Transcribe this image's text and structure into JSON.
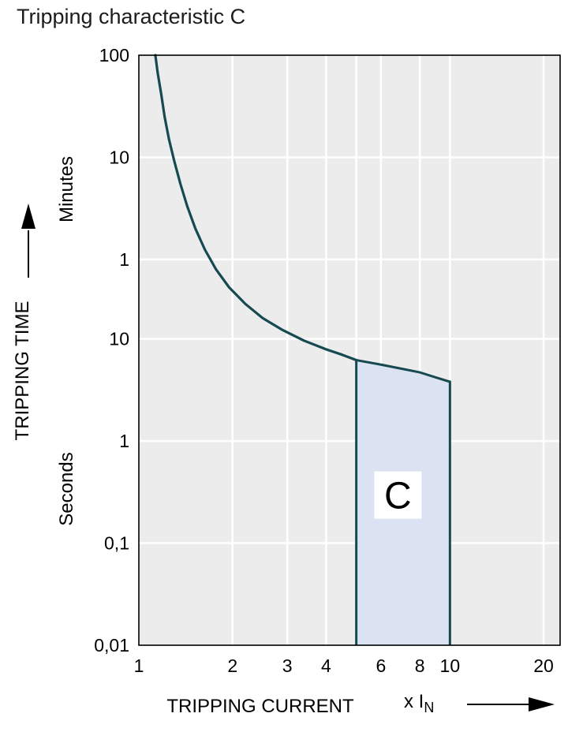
{
  "chart_data": {
    "type": "line",
    "title": "Tripping characteristic C",
    "x_axis": {
      "label": "TRIPPING CURRENT",
      "unit_label": "x I",
      "unit_sub": "N",
      "scale": "log",
      "min": 1,
      "max": 22.6,
      "ticks": [
        1,
        2,
        3,
        4,
        6,
        8,
        10,
        20
      ],
      "tick_labels": [
        "1",
        "2",
        "3",
        "4",
        "6",
        "8",
        "10",
        "20"
      ],
      "gridlines": [
        2,
        3,
        4,
        5,
        6,
        8,
        10,
        20
      ]
    },
    "y_axis": {
      "label": "TRIPPING TIME",
      "scale": "log",
      "unit_top": "Minutes",
      "unit_bottom": "Seconds",
      "min_seconds": 0.01,
      "max_seconds": 6000,
      "ticks": [
        {
          "value": 6000,
          "label": "100",
          "group": "minutes"
        },
        {
          "value": 600,
          "label": "10",
          "group": "minutes"
        },
        {
          "value": 60,
          "label": "1",
          "group": "minutes"
        },
        {
          "value": 10,
          "label": "10",
          "group": "seconds"
        },
        {
          "value": 1,
          "label": "1",
          "group": "seconds"
        },
        {
          "value": 0.1,
          "label": "0,1",
          "group": "seconds"
        },
        {
          "value": 0.01,
          "label": "0,01",
          "group": "seconds"
        }
      ],
      "gridlines": [
        600,
        60,
        10,
        1,
        0.1
      ]
    },
    "series": [
      {
        "name": "tripping-curve-upper-limit",
        "points": [
          [
            1.13,
            6000
          ],
          [
            1.15,
            4000
          ],
          [
            1.18,
            2500
          ],
          [
            1.21,
            1500
          ],
          [
            1.25,
            900
          ],
          [
            1.3,
            550
          ],
          [
            1.36,
            330
          ],
          [
            1.43,
            200
          ],
          [
            1.52,
            120
          ],
          [
            1.63,
            75
          ],
          [
            1.77,
            48
          ],
          [
            1.95,
            32
          ],
          [
            2.2,
            22
          ],
          [
            2.5,
            16
          ],
          [
            2.9,
            12.2
          ],
          [
            3.4,
            9.6
          ],
          [
            4.0,
            7.9
          ],
          [
            4.5,
            7.0
          ],
          [
            5.0,
            6.2
          ]
        ]
      }
    ],
    "band": {
      "label": "C",
      "x_min": 5,
      "x_max": 10,
      "y_bottom": 0.01,
      "label_x": 6.8,
      "label_y": 0.28,
      "top_points": [
        [
          5,
          6.2
        ],
        [
          6,
          5.6
        ],
        [
          7,
          5.1
        ],
        [
          8,
          4.7
        ],
        [
          9,
          4.2
        ],
        [
          10,
          3.8
        ]
      ]
    },
    "colors": {
      "curve": "#174a50",
      "band_fill": "#dbe3f3",
      "band_stroke": "#174a50",
      "plot_bg": "#ececec",
      "grid": "#ffffff",
      "axis": "#000000",
      "text": "#000000"
    }
  }
}
